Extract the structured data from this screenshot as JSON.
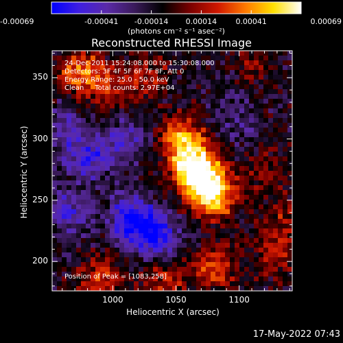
{
  "chart_data": {
    "type": "heatmap",
    "title": "Reconstructed RHESSI Image",
    "xlabel": "Heliocentric X (arcsec)",
    "ylabel": "Heliocentric Y (arcsec)",
    "xlim": [
      952,
      1142
    ],
    "ylim": [
      176,
      372
    ],
    "x_ticks": [
      1000,
      1050,
      1100
    ],
    "y_ticks": [
      200,
      250,
      300,
      350
    ],
    "x_tick_labels": [
      "1000",
      "1050",
      "1100"
    ],
    "y_tick_labels": [
      "200",
      "250",
      "300",
      "350"
    ],
    "colorbar": {
      "range": [
        -0.00069,
        0.00069
      ],
      "tick_labels": [
        "-0.00069",
        "-0.00041",
        "-0.00014",
        "0.00014",
        "0.00041",
        "0.00069"
      ],
      "unit_label": "(photons cm⁻² s⁻¹ asec⁻²)",
      "colormap": [
        "#0000ff",
        "#3f1ee0",
        "#5a2aa8",
        "#3a1a5a",
        "#000000",
        "#7a0000",
        "#d01800",
        "#ff7a00",
        "#ffe000",
        "#ffffff"
      ]
    },
    "annotations": [
      "24-Dec-2011 15:24:08.000 to 15:30:08.000",
      "Detectors: 3F 4F 5F 6F 7F 8F, Att 0",
      "Energy Range: 25.0 - 50.0 keV",
      "Clean     Total counts: 2.97E+04"
    ],
    "peak_label": "Position of Peak = [1083,258]",
    "peak": [
      1083,
      258
    ],
    "background_value_level": 0.00018,
    "features": [
      {
        "x": 1070,
        "y": 270,
        "value": 0.00069
      },
      {
        "x": 1055,
        "y": 300,
        "value": 0.00052
      },
      {
        "x": 1080,
        "y": 252,
        "value": 0.0006
      },
      {
        "x": 1062,
        "y": 280,
        "value": 0.0004
      },
      {
        "x": 975,
        "y": 355,
        "value": 0.0005
      },
      {
        "x": 1000,
        "y": 340,
        "value": 0.0003
      },
      {
        "x": 1030,
        "y": 350,
        "value": 0.00025
      },
      {
        "x": 1110,
        "y": 360,
        "value": 0.0002
      },
      {
        "x": 1080,
        "y": 195,
        "value": 0.00038
      },
      {
        "x": 1040,
        "y": 185,
        "value": 0.0003
      },
      {
        "x": 990,
        "y": 185,
        "value": 0.00034
      },
      {
        "x": 1130,
        "y": 205,
        "value": 0.00028
      },
      {
        "x": 1135,
        "y": 235,
        "value": 0.00022
      },
      {
        "x": 1120,
        "y": 275,
        "value": 0.00018
      },
      {
        "x": 980,
        "y": 285,
        "value": -0.0004
      },
      {
        "x": 965,
        "y": 240,
        "value": -0.00035
      },
      {
        "x": 1015,
        "y": 235,
        "value": -0.00055
      },
      {
        "x": 1035,
        "y": 220,
        "value": -0.0005
      },
      {
        "x": 1010,
        "y": 300,
        "value": -0.0003
      },
      {
        "x": 960,
        "y": 310,
        "value": -0.00025
      },
      {
        "x": 1100,
        "y": 310,
        "value": -0.00015
      },
      {
        "x": 1095,
        "y": 340,
        "value": -0.0001
      }
    ]
  },
  "footer": {
    "timestamp": "17-May-2022 07:43"
  }
}
